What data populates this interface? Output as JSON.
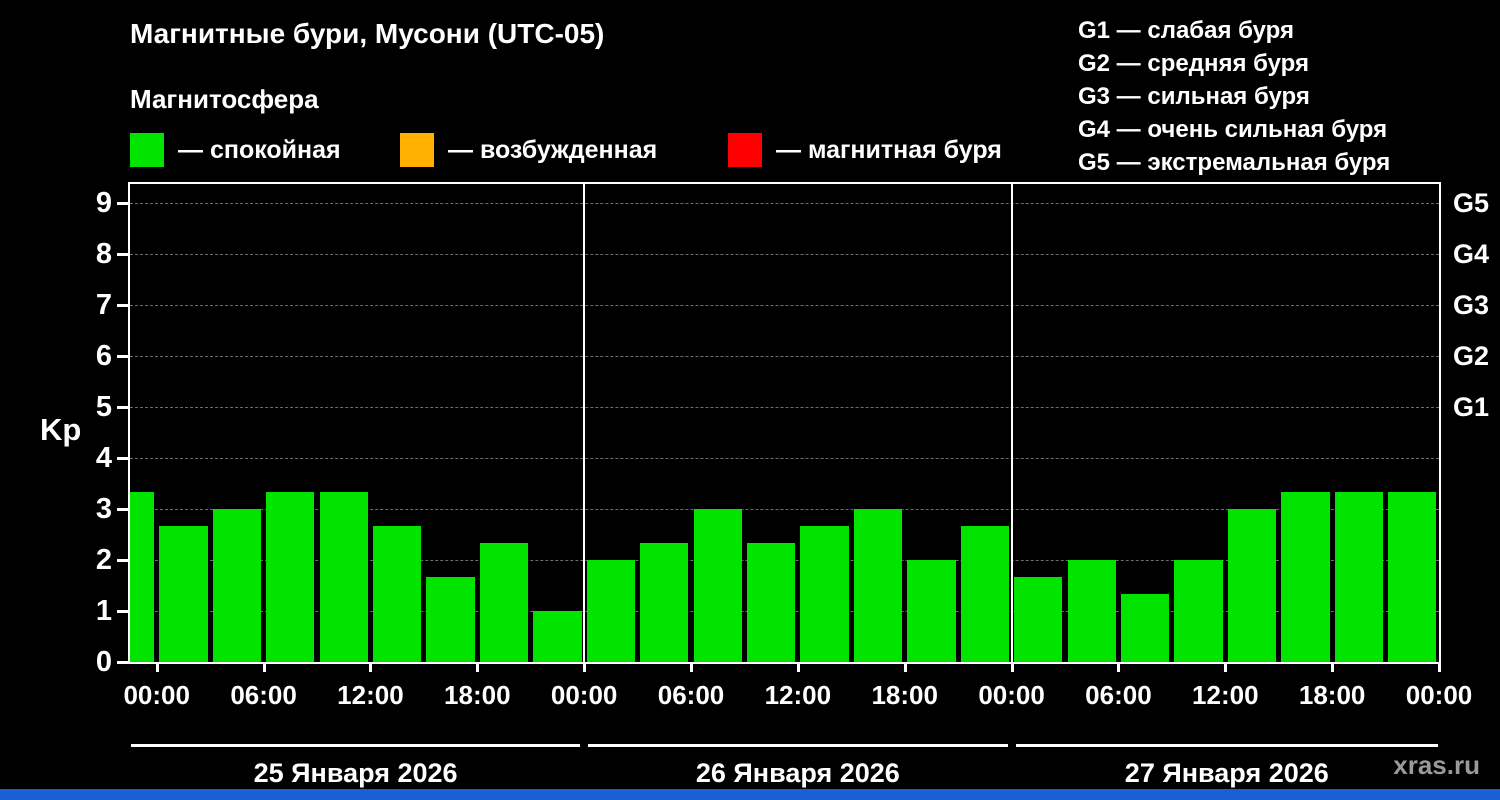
{
  "title": "Магнитные бури, Мусони (UTC-05)",
  "subtitle": "Магнитосфера",
  "legend": {
    "items": [
      {
        "name": "quiet",
        "label": "— спокойная",
        "color": "#00e400"
      },
      {
        "name": "excited",
        "label": "— возбужденная",
        "color": "#ffb000"
      },
      {
        "name": "storm",
        "label": "— магнитная буря",
        "color": "#ff0000"
      }
    ]
  },
  "g_legend": [
    "G1 — слабая буря",
    "G2 — средняя буря",
    "G3 — сильная буря",
    "G4 — очень сильная буря",
    "G5 — экстремальная буря"
  ],
  "watermark": "xras.ru",
  "accent_colors": {
    "bottom_strip": "#1a5fd4",
    "axis": "#ffffff",
    "grid": "#6d6d6d"
  },
  "chart_data": {
    "type": "bar",
    "title": "Магнитные бури, Мусони (UTC-05)",
    "ylabel": "Kp",
    "ylim": [
      0,
      9.4
    ],
    "yticks": [
      0,
      1,
      2,
      3,
      4,
      5,
      6,
      7,
      8,
      9
    ],
    "grid_levels": [
      1,
      2,
      3,
      4,
      5,
      6,
      7,
      8,
      9
    ],
    "right_axis_labels": [
      {
        "level": 9,
        "label": "G5"
      },
      {
        "level": 8,
        "label": "G4"
      },
      {
        "level": 7,
        "label": "G3"
      },
      {
        "level": 6,
        "label": "G2"
      },
      {
        "level": 5,
        "label": "G1"
      }
    ],
    "x_hours_range": [
      -1.5,
      72
    ],
    "x_ticks_hours": [
      0,
      6,
      12,
      18,
      24,
      30,
      36,
      42,
      48,
      54,
      60,
      66,
      72
    ],
    "x_tick_labels": [
      "00:00",
      "06:00",
      "12:00",
      "18:00",
      "00:00",
      "06:00",
      "12:00",
      "18:00",
      "00:00",
      "06:00",
      "12:00",
      "18:00",
      "00:00"
    ],
    "day_dividers_hours": [
      24,
      48
    ],
    "bar_color": "#00e400",
    "bar_hours": 3,
    "leading_partial_bar": {
      "start_hour": -1.5,
      "hours": 1.5,
      "kp": 3.33
    },
    "days": [
      {
        "date": "25 Января 2026",
        "start_hour": 0,
        "kp": [
          2.67,
          3.0,
          3.33,
          3.33,
          2.67,
          1.67,
          2.33,
          1.0
        ]
      },
      {
        "date": "26 Января 2026",
        "start_hour": 24,
        "kp": [
          2.0,
          2.33,
          3.0,
          2.33,
          2.67,
          3.0,
          2.0,
          2.67
        ]
      },
      {
        "date": "27 Января 2026",
        "start_hour": 48,
        "kp": [
          1.67,
          2.0,
          1.33,
          2.0,
          3.0,
          3.33,
          3.33,
          3.33
        ]
      }
    ]
  }
}
